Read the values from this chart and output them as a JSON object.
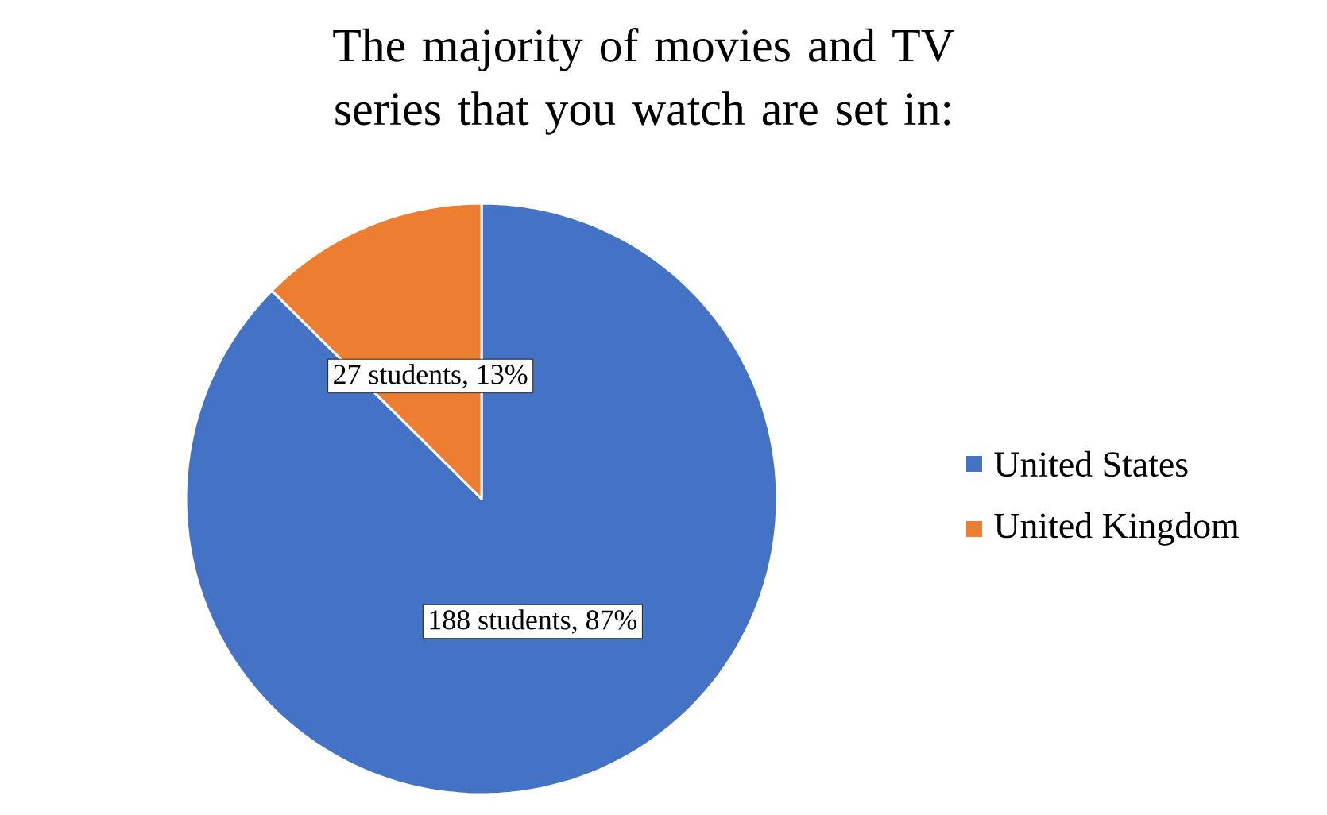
{
  "chart_data": {
    "type": "pie",
    "title": "The majority of movies and TV series that you watch are set in:",
    "categories": [
      "United States",
      "United Kingdom"
    ],
    "values": [
      188,
      27
    ],
    "value_labels": [
      "188 students, 87%",
      "27 students, 13%"
    ],
    "colors": [
      "#4472c4",
      "#ed7d31"
    ],
    "legend": "right"
  }
}
